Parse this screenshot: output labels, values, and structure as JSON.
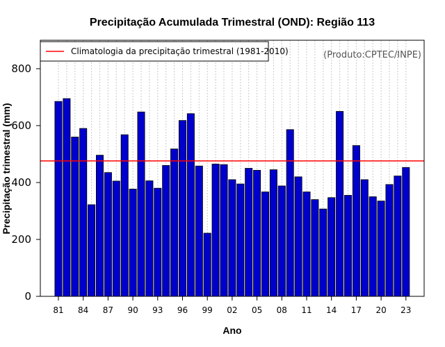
{
  "chart_data": {
    "type": "bar",
    "title": "Precipitação Acumulada Trimestral (OND): Região 113",
    "xlabel": "Ano",
    "ylabel": "Precipitação trimestral (mm)",
    "ylim": [
      0,
      900
    ],
    "yticks": [
      0,
      200,
      400,
      600,
      800
    ],
    "ytick_labels": [
      "0",
      "200",
      "400",
      "600",
      "800"
    ],
    "xtick_labels": [
      "81",
      "84",
      "87",
      "90",
      "93",
      "96",
      "99",
      "02",
      "05",
      "08",
      "11",
      "14",
      "17",
      "20",
      "23"
    ],
    "years": [
      1981,
      1982,
      1983,
      1984,
      1985,
      1986,
      1987,
      1988,
      1989,
      1990,
      1991,
      1992,
      1993,
      1994,
      1995,
      1996,
      1997,
      1998,
      1999,
      2000,
      2001,
      2002,
      2003,
      2004,
      2005,
      2006,
      2007,
      2008,
      2009,
      2010,
      2011,
      2012,
      2013,
      2014,
      2015,
      2016,
      2017,
      2018,
      2019,
      2020,
      2021,
      2022,
      2023
    ],
    "values": [
      685,
      695,
      560,
      590,
      322,
      496,
      435,
      405,
      568,
      377,
      648,
      406,
      380,
      460,
      518,
      618,
      642,
      458,
      222,
      465,
      463,
      410,
      395,
      450,
      443,
      367,
      445,
      388,
      586,
      420,
      367,
      340,
      307,
      347,
      650,
      355,
      530,
      410,
      350,
      335,
      393,
      423,
      453
    ],
    "bar_color": "#0000cc",
    "grid": true,
    "climatology": {
      "value": 476,
      "color": "#ff0000",
      "label": "Climatologia da precipitação trimestral (1981-2010)"
    },
    "legend_position": "top-left",
    "annotation": "(Produto:CPTEC/INPE)"
  }
}
